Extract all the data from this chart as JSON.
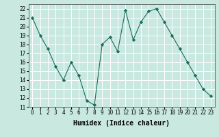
{
  "x": [
    0,
    1,
    2,
    3,
    4,
    5,
    6,
    7,
    8,
    9,
    10,
    11,
    12,
    13,
    14,
    15,
    16,
    17,
    18,
    19,
    20,
    21,
    22,
    23
  ],
  "y": [
    21,
    19,
    17.5,
    15.5,
    14,
    16,
    14.5,
    11.7,
    11.2,
    18,
    18.8,
    17.2,
    21.8,
    18.5,
    20.5,
    21.7,
    22,
    20.5,
    19,
    17.5,
    16,
    14.5,
    13,
    12.2
  ],
  "line_color": "#1a6b5a",
  "marker": "D",
  "marker_size": 2.2,
  "bg_color": "#c8e8e0",
  "grid_color": "#ffffff",
  "xlabel": "Humidex (Indice chaleur)",
  "xlim": [
    -0.5,
    23.5
  ],
  "ylim": [
    11,
    22.5
  ],
  "yticks": [
    11,
    12,
    13,
    14,
    15,
    16,
    17,
    18,
    19,
    20,
    21,
    22
  ],
  "xticks": [
    0,
    1,
    2,
    3,
    4,
    5,
    6,
    7,
    8,
    9,
    10,
    11,
    12,
    13,
    14,
    15,
    16,
    17,
    18,
    19,
    20,
    21,
    22,
    23
  ],
  "tick_fontsize": 5.5,
  "label_fontsize": 7.0
}
